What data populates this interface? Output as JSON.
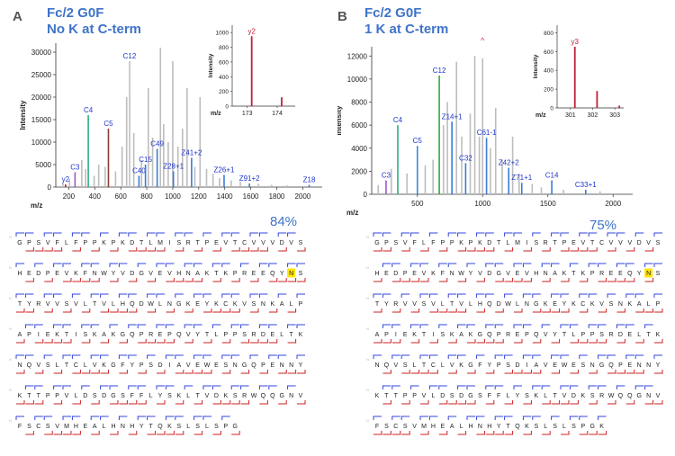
{
  "panels": [
    {
      "letter": "A",
      "title_line1": "Fc/2 G0F",
      "title_line2": "No K at C-term",
      "coverage": "84%",
      "xlabel": "m/z",
      "ylabel": "Intensity",
      "inset_xlabel": "m/z",
      "inset_ylabel": "Intensity",
      "sequence_rows": [
        "GPSVFLFPPKPKDTLMISRTPEVTCVVVDVS",
        "HEDPEVKFNWYVDGVEVHNAKTKPREEQYNS",
        "TYRVVSVLTVLHQDWLNGKEYKCKVSNKALP",
        "APIEKTISKAKGQPREPQVYTLPPSRDELTK",
        "NQVSLTCLVKGFYPSDIAVEWESNGQPENNY",
        "KTTPPVLDSDGSFFLYSKLTVDKSRWQQGNV",
        "FSCSVMHEALHNHYTQKSLSLSPG"
      ]
    },
    {
      "letter": "B",
      "title_line1": "Fc/2 G0F",
      "title_line2": "1 K at C-term",
      "coverage": "75%",
      "xlabel": "m/z",
      "ylabel": "Intensity",
      "inset_xlabel": "m/z",
      "inset_ylabel": "Intensity",
      "sequence_rows": [
        "GPSVFLFPPKPKDTLMISRTPEVTCVVVDVS",
        "HEDPEVKFNWYVDGVEVHNAKTKPREEQYNS",
        "TYRVVSVLTVLHQDWLNGKEYKCKVSNKALP",
        "APIEKTISKAKGQPREPQVYTLPPSRDELTK",
        "NQVSLTCLVKGFYPSDIAVEWESNGQPENNY",
        "KTTPPVLDSDGSFFLYSKLTVDKSRWQQGNV",
        "FSCSVMHEALHNHYTQKSLSLSPGK"
      ]
    }
  ],
  "colors": {
    "title_blue": "#3f73c8",
    "ion_label_blue": "#1f35c9",
    "n_fragment_blue": "#3344dd",
    "c_fragment_red": "#cc2222",
    "glycosite_yellow": "#ffe600",
    "unassigned_gray": "#bdbdbd",
    "y_ion_red": "#c0203a"
  },
  "chart_data": [
    {
      "type": "bar",
      "title": "Fc/2 G0F No K at C-term",
      "xlabel": "m/z",
      "ylabel": "Intensity",
      "xlim": [
        100,
        2150
      ],
      "ylim": [
        0,
        32000
      ],
      "xticks": [
        200,
        400,
        600,
        800,
        1000,
        1200,
        1400,
        1600,
        1800,
        2000
      ],
      "yticks": [
        0,
        5000,
        10000,
        15000,
        20000,
        25000,
        30000
      ],
      "annotated_peaks": [
        {
          "label": "y2",
          "x": 175,
          "y": 600,
          "color": "#c0203a"
        },
        {
          "label": "C3",
          "x": 248,
          "y": 3300,
          "color": "#9b59d0"
        },
        {
          "label": "C4",
          "x": 350,
          "y": 16000,
          "color": "#2eaf7d"
        },
        {
          "label": "C5",
          "x": 505,
          "y": 13000,
          "color": "#8b3a3a"
        },
        {
          "label": "C12",
          "x": 668,
          "y": 28000,
          "color": "#c0c0c0"
        },
        {
          "label": "C40",
          "x": 740,
          "y": 2500,
          "color": "#3a7bd5"
        },
        {
          "label": "C15",
          "x": 790,
          "y": 5000,
          "color": "#3a7bd5"
        },
        {
          "label": "C49",
          "x": 880,
          "y": 8500,
          "color": "#3a7bd5"
        },
        {
          "label": "Z28+1",
          "x": 1005,
          "y": 3500,
          "color": "#3a7bd5"
        },
        {
          "label": "Z41+2",
          "x": 1145,
          "y": 6500,
          "color": "#3a7bd5"
        },
        {
          "label": "Z26+1",
          "x": 1395,
          "y": 2700,
          "color": "#3a7bd5"
        },
        {
          "label": "Z91+2",
          "x": 1590,
          "y": 800,
          "color": "#3a7bd5"
        },
        {
          "label": "Z18",
          "x": 2050,
          "y": 500,
          "color": "#3a7bd5"
        }
      ],
      "unlabeled_peaks": [
        {
          "x": 155,
          "y": 900
        },
        {
          "x": 205,
          "y": 1800
        },
        {
          "x": 300,
          "y": 6000
        },
        {
          "x": 330,
          "y": 4000
        },
        {
          "x": 395,
          "y": 2500
        },
        {
          "x": 430,
          "y": 5000
        },
        {
          "x": 480,
          "y": 4500
        },
        {
          "x": 560,
          "y": 3500
        },
        {
          "x": 610,
          "y": 9000
        },
        {
          "x": 645,
          "y": 20000
        },
        {
          "x": 700,
          "y": 12000
        },
        {
          "x": 760,
          "y": 6000
        },
        {
          "x": 812,
          "y": 22000
        },
        {
          "x": 845,
          "y": 11000
        },
        {
          "x": 905,
          "y": 31000
        },
        {
          "x": 930,
          "y": 14000
        },
        {
          "x": 965,
          "y": 10000
        },
        {
          "x": 1000,
          "y": 28000
        },
        {
          "x": 1040,
          "y": 9000
        },
        {
          "x": 1075,
          "y": 13000
        },
        {
          "x": 1110,
          "y": 22000
        },
        {
          "x": 1170,
          "y": 4500
        },
        {
          "x": 1210,
          "y": 20000
        },
        {
          "x": 1260,
          "y": 4000
        },
        {
          "x": 1310,
          "y": 3000
        },
        {
          "x": 1360,
          "y": 2000
        },
        {
          "x": 1450,
          "y": 1500
        },
        {
          "x": 1520,
          "y": 1200
        },
        {
          "x": 1660,
          "y": 700
        },
        {
          "x": 1760,
          "y": 500
        },
        {
          "x": 1880,
          "y": 400
        }
      ],
      "inset": {
        "type": "bar",
        "xlabel": "m/z",
        "ylabel": "Intensity",
        "xlim": [
          172.5,
          174.6
        ],
        "ylim": [
          0,
          1100
        ],
        "xticks": [
          173,
          174
        ],
        "yticks": [
          0,
          200,
          400,
          600,
          800,
          1000
        ],
        "peaks": [
          {
            "label": "y2",
            "x": 173.15,
            "y": 950,
            "color": "#c0203a"
          },
          {
            "label": "",
            "x": 174.15,
            "y": 120,
            "color": "#c0203a"
          }
        ]
      }
    },
    {
      "type": "bar",
      "title": "Fc/2 G0F 1 K at C-term",
      "xlabel": "m/z",
      "ylabel": "Intensity",
      "xlim": [
        150,
        2150
      ],
      "ylim": [
        0,
        12800
      ],
      "xticks": [
        500,
        1000,
        1500,
        2000
      ],
      "yticks": [
        0,
        2000,
        4000,
        6000,
        8000,
        10000,
        12000
      ],
      "annotated_peaks": [
        {
          "label": "C3",
          "x": 260,
          "y": 1200,
          "color": "#9b59d0"
        },
        {
          "label": "C4",
          "x": 350,
          "y": 6000,
          "color": "#2eaf7d"
        },
        {
          "label": "C5",
          "x": 500,
          "y": 4200,
          "color": "#3a8bd5"
        },
        {
          "label": "C12",
          "x": 668,
          "y": 10300,
          "color": "#2eaf3a"
        },
        {
          "label": "Z14+1",
          "x": 765,
          "y": 6300,
          "color": "#3a7bd5"
        },
        {
          "label": "C32",
          "x": 870,
          "y": 2700,
          "color": "#3a7bd5"
        },
        {
          "label": "C61-1",
          "x": 1030,
          "y": 4900,
          "color": "#3a7bd5"
        },
        {
          "label": "Z42+2",
          "x": 1200,
          "y": 2300,
          "color": "#3a7bd5"
        },
        {
          "label": "Z71+1",
          "x": 1300,
          "y": 1000,
          "color": "#3a7bd5"
        },
        {
          "label": "C14",
          "x": 1530,
          "y": 1200,
          "color": "#3a7bd5"
        },
        {
          "label": "C33+1",
          "x": 1790,
          "y": 400,
          "color": "#3a7bd5"
        }
      ],
      "unlabeled_peaks": [
        {
          "x": 200,
          "y": 800
        },
        {
          "x": 300,
          "y": 2200
        },
        {
          "x": 420,
          "y": 1800
        },
        {
          "x": 560,
          "y": 2500
        },
        {
          "x": 620,
          "y": 3000
        },
        {
          "x": 700,
          "y": 6000
        },
        {
          "x": 730,
          "y": 8000
        },
        {
          "x": 800,
          "y": 11500
        },
        {
          "x": 840,
          "y": 5000
        },
        {
          "x": 905,
          "y": 7000
        },
        {
          "x": 940,
          "y": 12000
        },
        {
          "x": 975,
          "y": 5000
        },
        {
          "x": 1000,
          "y": 11800
        },
        {
          "x": 1060,
          "y": 4000
        },
        {
          "x": 1100,
          "y": 7500
        },
        {
          "x": 1150,
          "y": 3000
        },
        {
          "x": 1230,
          "y": 5000
        },
        {
          "x": 1280,
          "y": 1800
        },
        {
          "x": 1380,
          "y": 900
        },
        {
          "x": 1450,
          "y": 600
        },
        {
          "x": 1620,
          "y": 400
        },
        {
          "x": 1900,
          "y": 250
        }
      ],
      "marker": {
        "x": 1000,
        "label": "^"
      },
      "inset": {
        "type": "bar",
        "xlabel": "m/z",
        "ylabel": "Intensity",
        "xlim": [
          300.4,
          303.4
        ],
        "ylim": [
          0,
          880
        ],
        "xticks": [
          301,
          302,
          303
        ],
        "yticks": [
          0,
          200,
          400,
          600,
          800
        ],
        "peaks": [
          {
            "label": "y3",
            "x": 301.2,
            "y": 650,
            "color": "#c0203a"
          },
          {
            "label": "",
            "x": 302.2,
            "y": 180,
            "color": "#c0203a"
          },
          {
            "label": "",
            "x": 303.2,
            "y": 25,
            "color": "#c0203a"
          }
        ]
      }
    }
  ]
}
